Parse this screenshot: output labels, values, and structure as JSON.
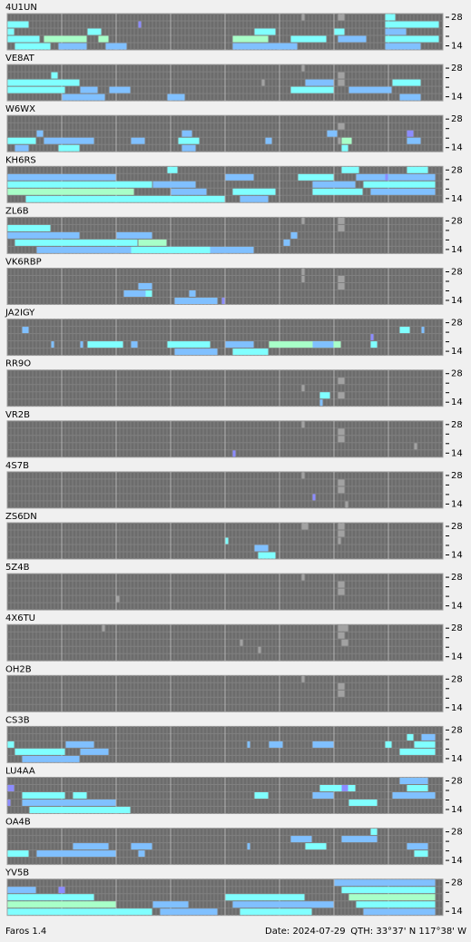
{
  "app": {
    "name": "Faros 1.4",
    "date": "Date: 2024-07-29",
    "qth": "QTH: 33°37' N  117°38' W"
  },
  "band_labels": {
    "top": "28",
    "bottom": "14"
  },
  "level_colors": [
    "#a2a2a2",
    "#80c0ff",
    "#80ffff",
    "#a8ffc8",
    "#8c8cff"
  ],
  "stations": [
    {
      "name": "4U1UN",
      "runs": [
        [
          1,
          0,
          6,
          2
        ],
        [
          2,
          0,
          2,
          2
        ],
        [
          3,
          0,
          9,
          2
        ],
        [
          3,
          10,
          12,
          3
        ],
        [
          4,
          2,
          10,
          2
        ],
        [
          4,
          14,
          8,
          1
        ],
        [
          2,
          22,
          4,
          2
        ],
        [
          3,
          25,
          3,
          3
        ],
        [
          4,
          27,
          6,
          1
        ],
        [
          1,
          36,
          1,
          4
        ],
        [
          3,
          62,
          10,
          3
        ],
        [
          2,
          68,
          6,
          2
        ],
        [
          4,
          62,
          18,
          1
        ],
        [
          3,
          78,
          10,
          2
        ],
        [
          2,
          90,
          3,
          2
        ],
        [
          3,
          91,
          8,
          1
        ],
        [
          0,
          104,
          3,
          2
        ],
        [
          1,
          104,
          15,
          2
        ],
        [
          2,
          104,
          6,
          1
        ],
        [
          3,
          104,
          15,
          2
        ],
        [
          4,
          104,
          10,
          1
        ],
        [
          0,
          81,
          1,
          0
        ],
        [
          0,
          91,
          2,
          0
        ]
      ]
    },
    {
      "name": "VE8AT",
      "runs": [
        [
          1,
          12,
          2,
          2
        ],
        [
          2,
          0,
          20,
          2
        ],
        [
          3,
          0,
          16,
          2
        ],
        [
          3,
          20,
          5,
          1
        ],
        [
          3,
          28,
          6,
          1
        ],
        [
          4,
          15,
          12,
          1
        ],
        [
          4,
          44,
          5,
          1
        ],
        [
          2,
          70,
          1,
          0
        ],
        [
          3,
          78,
          12,
          2
        ],
        [
          2,
          82,
          8,
          1
        ],
        [
          3,
          94,
          12,
          1
        ],
        [
          2,
          106,
          8,
          2
        ],
        [
          4,
          108,
          6,
          1
        ],
        [
          1,
          91,
          2,
          0
        ],
        [
          2,
          91,
          2,
          0
        ],
        [
          0,
          81,
          1,
          0
        ]
      ]
    },
    {
      "name": "W6WX",
      "runs": [
        [
          2,
          8,
          2,
          1
        ],
        [
          3,
          0,
          8,
          2
        ],
        [
          3,
          10,
          14,
          1
        ],
        [
          4,
          14,
          6,
          2
        ],
        [
          4,
          2,
          4,
          1
        ],
        [
          3,
          34,
          4,
          1
        ],
        [
          2,
          48,
          3,
          1
        ],
        [
          3,
          47,
          6,
          2
        ],
        [
          4,
          48,
          4,
          1
        ],
        [
          3,
          71,
          2,
          1
        ],
        [
          2,
          88,
          3,
          1
        ],
        [
          3,
          92,
          3,
          3
        ],
        [
          4,
          92,
          2,
          2
        ],
        [
          2,
          110,
          2,
          4
        ],
        [
          3,
          110,
          4,
          1
        ],
        [
          1,
          91,
          2,
          0
        ],
        [
          3,
          91,
          1,
          0
        ]
      ]
    },
    {
      "name": "KH6RS",
      "runs": [
        [
          1,
          0,
          30,
          1
        ],
        [
          2,
          0,
          40,
          2
        ],
        [
          3,
          0,
          35,
          3
        ],
        [
          4,
          5,
          55,
          2
        ],
        [
          2,
          40,
          12,
          1
        ],
        [
          3,
          45,
          10,
          1
        ],
        [
          0,
          44,
          3,
          2
        ],
        [
          1,
          60,
          8,
          1
        ],
        [
          3,
          62,
          12,
          2
        ],
        [
          4,
          64,
          8,
          1
        ],
        [
          1,
          80,
          10,
          2
        ],
        [
          2,
          84,
          12,
          1
        ],
        [
          3,
          84,
          14,
          2
        ],
        [
          0,
          92,
          5,
          2
        ],
        [
          1,
          96,
          22,
          1
        ],
        [
          2,
          98,
          20,
          2
        ],
        [
          3,
          100,
          18,
          1
        ],
        [
          0,
          110,
          6,
          2
        ],
        [
          1,
          104,
          1,
          4
        ]
      ]
    },
    {
      "name": "ZL6B",
      "runs": [
        [
          1,
          0,
          12,
          2
        ],
        [
          2,
          0,
          20,
          1
        ],
        [
          3,
          2,
          34,
          2
        ],
        [
          4,
          8,
          60,
          1
        ],
        [
          2,
          30,
          10,
          1
        ],
        [
          3,
          36,
          8,
          3
        ],
        [
          4,
          34,
          22,
          2
        ],
        [
          3,
          76,
          2,
          1
        ],
        [
          2,
          78,
          2,
          1
        ],
        [
          0,
          81,
          1,
          0
        ],
        [
          0,
          91,
          2,
          0
        ],
        [
          1,
          91,
          2,
          0
        ]
      ]
    },
    {
      "name": "VK6RBP",
      "runs": [
        [
          2,
          36,
          4,
          1
        ],
        [
          3,
          32,
          8,
          1
        ],
        [
          3,
          38,
          2,
          2
        ],
        [
          4,
          46,
          12,
          1
        ],
        [
          3,
          50,
          2,
          1
        ],
        [
          4,
          59,
          1,
          4
        ],
        [
          0,
          81,
          1,
          0
        ],
        [
          1,
          81,
          1,
          0
        ],
        [
          1,
          91,
          2,
          0
        ],
        [
          2,
          91,
          2,
          0
        ]
      ]
    },
    {
      "name": "JA2IGY",
      "runs": [
        [
          1,
          4,
          2,
          1
        ],
        [
          3,
          12,
          1,
          1
        ],
        [
          3,
          20,
          1,
          1
        ],
        [
          3,
          22,
          10,
          2
        ],
        [
          3,
          34,
          2,
          1
        ],
        [
          3,
          44,
          12,
          2
        ],
        [
          4,
          46,
          12,
          1
        ],
        [
          3,
          60,
          8,
          1
        ],
        [
          4,
          62,
          10,
          2
        ],
        [
          3,
          72,
          20,
          3
        ],
        [
          3,
          84,
          6,
          1
        ],
        [
          3,
          100,
          2,
          2
        ],
        [
          2,
          100,
          1,
          4
        ],
        [
          1,
          108,
          3,
          2
        ],
        [
          1,
          114,
          1,
          1
        ]
      ]
    },
    {
      "name": "RR9O",
      "runs": [
        [
          3,
          86,
          3,
          2
        ],
        [
          4,
          86,
          1,
          1
        ],
        [
          2,
          81,
          1,
          0
        ],
        [
          1,
          91,
          2,
          0
        ],
        [
          3,
          91,
          2,
          0
        ]
      ]
    },
    {
      "name": "VR2B",
      "runs": [
        [
          4,
          62,
          1,
          4
        ],
        [
          0,
          81,
          1,
          0
        ],
        [
          1,
          91,
          2,
          0
        ],
        [
          2,
          91,
          2,
          0
        ],
        [
          3,
          112,
          1,
          0
        ]
      ]
    },
    {
      "name": "4S7B",
      "runs": [
        [
          3,
          84,
          1,
          4
        ],
        [
          0,
          81,
          1,
          0
        ],
        [
          1,
          91,
          2,
          0
        ],
        [
          2,
          91,
          2,
          0
        ],
        [
          4,
          93,
          1,
          0
        ]
      ]
    },
    {
      "name": "ZS6DN",
      "runs": [
        [
          2,
          60,
          1,
          2
        ],
        [
          3,
          68,
          4,
          1
        ],
        [
          4,
          69,
          5,
          2
        ],
        [
          0,
          81,
          2,
          0
        ],
        [
          0,
          91,
          2,
          0
        ],
        [
          1,
          91,
          2,
          0
        ],
        [
          2,
          91,
          1,
          0
        ]
      ]
    },
    {
      "name": "5Z4B",
      "runs": [
        [
          3,
          30,
          1,
          0
        ],
        [
          0,
          81,
          1,
          0
        ],
        [
          1,
          91,
          2,
          0
        ],
        [
          2,
          91,
          2,
          0
        ]
      ]
    },
    {
      "name": "4X6TU",
      "runs": [
        [
          0,
          26,
          1,
          0
        ],
        [
          2,
          64,
          1,
          0
        ],
        [
          3,
          69,
          1,
          0
        ],
        [
          0,
          91,
          3,
          0
        ],
        [
          1,
          91,
          2,
          0
        ],
        [
          2,
          92,
          2,
          0
        ]
      ]
    },
    {
      "name": "OH2B",
      "runs": [
        [
          0,
          81,
          1,
          0
        ],
        [
          1,
          91,
          2,
          0
        ],
        [
          2,
          91,
          2,
          0
        ]
      ]
    },
    {
      "name": "CS3B",
      "runs": [
        [
          2,
          0,
          2,
          2
        ],
        [
          3,
          2,
          14,
          2
        ],
        [
          4,
          4,
          16,
          1
        ],
        [
          2,
          16,
          8,
          1
        ],
        [
          3,
          20,
          8,
          1
        ],
        [
          2,
          66,
          1,
          1
        ],
        [
          2,
          72,
          4,
          1
        ],
        [
          2,
          84,
          6,
          1
        ],
        [
          2,
          104,
          2,
          2
        ],
        [
          1,
          110,
          2,
          2
        ],
        [
          2,
          112,
          6,
          2
        ],
        [
          3,
          108,
          10,
          2
        ],
        [
          1,
          114,
          4,
          1
        ]
      ]
    },
    {
      "name": "LU4AA",
      "runs": [
        [
          1,
          0,
          2,
          4
        ],
        [
          3,
          0,
          1,
          4
        ],
        [
          2,
          4,
          12,
          2
        ],
        [
          3,
          4,
          26,
          1
        ],
        [
          4,
          6,
          28,
          2
        ],
        [
          2,
          18,
          4,
          2
        ],
        [
          2,
          68,
          4,
          2
        ],
        [
          1,
          86,
          10,
          2
        ],
        [
          2,
          84,
          6,
          1
        ],
        [
          3,
          94,
          8,
          2
        ],
        [
          1,
          92,
          2,
          4
        ],
        [
          0,
          108,
          8,
          1
        ],
        [
          1,
          110,
          6,
          2
        ],
        [
          2,
          106,
          12,
          1
        ]
      ]
    },
    {
      "name": "OA4B",
      "runs": [
        [
          3,
          0,
          6,
          2
        ],
        [
          3,
          8,
          22,
          1
        ],
        [
          2,
          18,
          10,
          1
        ],
        [
          2,
          34,
          6,
          1
        ],
        [
          3,
          36,
          2,
          1
        ],
        [
          2,
          66,
          1,
          1
        ],
        [
          1,
          78,
          6,
          1
        ],
        [
          2,
          82,
          6,
          2
        ],
        [
          1,
          92,
          10,
          1
        ],
        [
          0,
          100,
          2,
          2
        ],
        [
          2,
          110,
          6,
          1
        ],
        [
          3,
          112,
          4,
          2
        ]
      ]
    },
    {
      "name": "YV5B",
      "runs": [
        [
          1,
          0,
          8,
          1
        ],
        [
          2,
          0,
          24,
          2
        ],
        [
          3,
          0,
          30,
          3
        ],
        [
          4,
          0,
          40,
          2
        ],
        [
          1,
          14,
          2,
          4
        ],
        [
          3,
          40,
          10,
          1
        ],
        [
          4,
          42,
          16,
          1
        ],
        [
          2,
          60,
          22,
          2
        ],
        [
          3,
          62,
          28,
          1
        ],
        [
          4,
          64,
          20,
          2
        ],
        [
          0,
          90,
          28,
          1
        ],
        [
          1,
          92,
          26,
          2
        ],
        [
          2,
          94,
          24,
          3
        ],
        [
          3,
          96,
          22,
          2
        ],
        [
          4,
          98,
          20,
          1
        ]
      ]
    }
  ]
}
